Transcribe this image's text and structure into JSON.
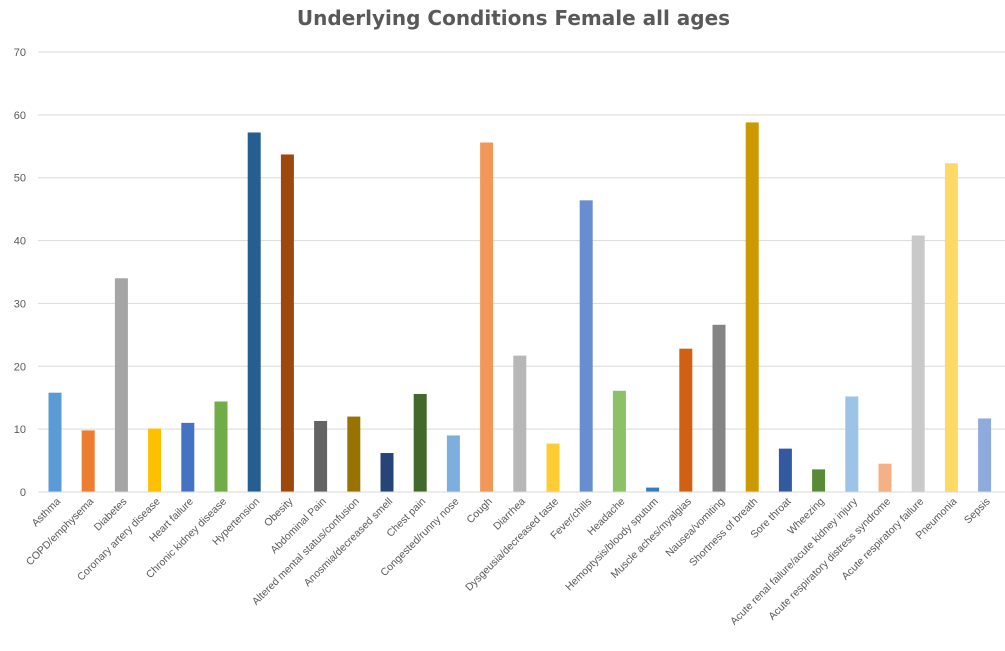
{
  "chart_data": {
    "type": "bar",
    "title": "Underlying Conditions Female all ages",
    "xlabel": "",
    "ylabel": "",
    "ylim": [
      0,
      70
    ],
    "yticks": [
      0,
      10,
      20,
      30,
      40,
      50,
      60,
      70
    ],
    "grid": true,
    "legend": "none",
    "categories": [
      "Asthma",
      "COPD/emphysema",
      "Diabetes",
      "Coronary artery disease",
      "Heart failure",
      "Chronic kidney disease",
      "Hypertension",
      "Obesity",
      "Abdominal Pain",
      "Altered mental status/confusion",
      "Anosmia/decreased smell",
      "Chest pain",
      "Congested/runny nose",
      "Cough",
      "Diarrhea",
      "Dysgeusia/decreased taste",
      "Fever/chills",
      "Headache",
      "Hemoptysis/bloody sputum",
      "Muscle aches/myalgias",
      "Nausea/vomiting",
      "Shortness of breath",
      "Sore throat",
      "Wheezing",
      "Acute renal failure/acute kidney injury",
      "Acute respiratory distress syndrome",
      "Acute respiratory failure",
      "Pneumonia",
      "Sepsis"
    ],
    "values": [
      15.8,
      9.8,
      34.0,
      10.1,
      11.0,
      14.4,
      57.2,
      53.7,
      11.3,
      12.0,
      6.2,
      15.6,
      9.0,
      55.6,
      21.7,
      7.7,
      46.4,
      16.1,
      0.7,
      22.8,
      26.6,
      58.8,
      6.9,
      3.6,
      15.2,
      4.5,
      40.8,
      52.3,
      11.7
    ],
    "colors": [
      "#5B9BD5",
      "#ED7D31",
      "#A5A5A5",
      "#FFC000",
      "#4472C4",
      "#70AD47",
      "#255E91",
      "#9E480E",
      "#636363",
      "#997300",
      "#264478",
      "#43682B",
      "#7CAFDD",
      "#F1975A",
      "#B7B7B7",
      "#FFCD33",
      "#698ED0",
      "#8CC168",
      "#327DC2",
      "#D26012",
      "#848484",
      "#CC9A00",
      "#335AA1",
      "#5A8A39",
      "#9DC3E6",
      "#F4B183",
      "#C9C9C9",
      "#FFD966",
      "#8FAADC"
    ]
  }
}
